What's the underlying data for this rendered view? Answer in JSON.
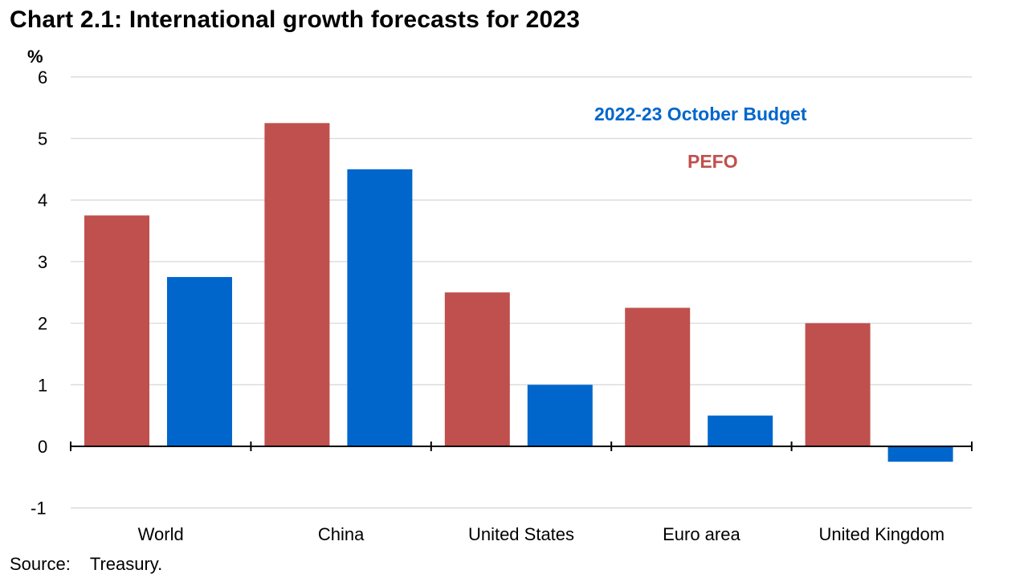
{
  "chart_data": {
    "type": "bar",
    "title": "Chart 2.1: International growth forecasts for 2023",
    "ylabel": "%",
    "xlabel": "",
    "ylim": [
      -1,
      6
    ],
    "yticks": [
      -1,
      0,
      1,
      2,
      3,
      4,
      5,
      6
    ],
    "grid": true,
    "categories": [
      "World",
      "China",
      "United States",
      "Euro area",
      "United Kingdom"
    ],
    "series": [
      {
        "name": "PEFO",
        "color": "#c0504d",
        "values": [
          3.75,
          5.25,
          2.5,
          2.25,
          2.0
        ]
      },
      {
        "name": "2022-23 October Budget",
        "color": "#0066cc",
        "values": [
          2.75,
          4.5,
          1.0,
          0.5,
          -0.25
        ]
      }
    ],
    "legend_placement": "top-right, inside plot"
  },
  "source": {
    "label": "Source:",
    "text": "Treasury."
  }
}
